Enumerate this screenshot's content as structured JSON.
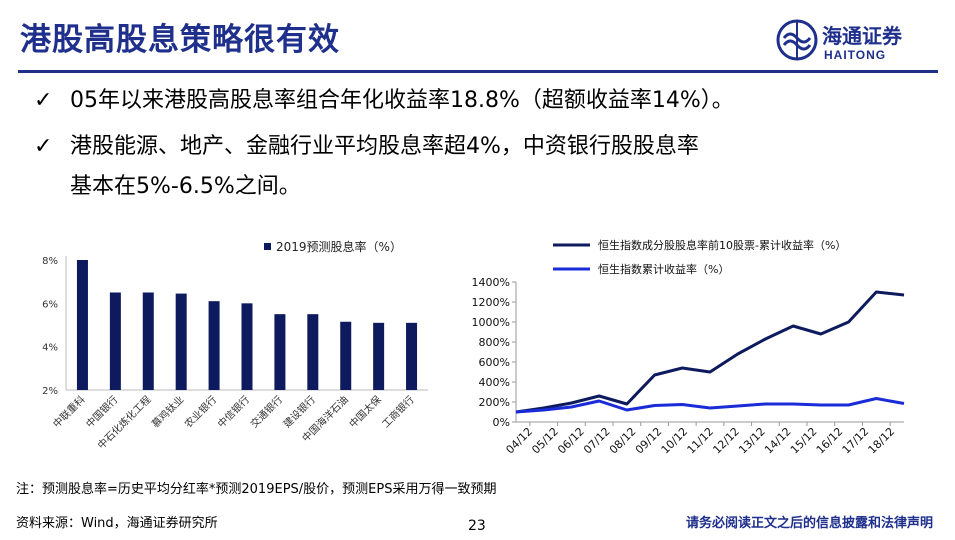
{
  "slide": {
    "title": "港股高股息策略很有效",
    "logo": {
      "cn": "海通证券",
      "en": "HAITONG"
    },
    "bullets": [
      "05年以来港股高股息率组合年化收益率18.8%（超额收益率14%）。",
      "港股能源、地产、金融行业平均股息率超4%，中资银行股股息率",
      "基本在5%-6.5%之间。"
    ],
    "note": "注：预测股息率=历史平均分红率*预测2019EPS/股价，预测EPS采用万得一致预期",
    "source": "资料来源：Wind，海通证券研究所",
    "page_number": "23",
    "disclaimer": "请务必阅读正文之后的信息披露和法律声明",
    "colors": {
      "brand": "#1f2f8c",
      "bar": "#0d1a5e",
      "line1": "#0d1a5e",
      "line2": "#1a2bd8"
    }
  },
  "chart_data": [
    {
      "type": "bar",
      "legend": "2019预测股息率（%）",
      "categories": [
        "中联重科",
        "中国银行",
        "中石化炼化工程",
        "慕鸡钛业",
        "农业银行",
        "中信银行",
        "交通银行",
        "建设银行",
        "中国海洋石油",
        "中国太保",
        "工商银行"
      ],
      "values": [
        8.0,
        6.5,
        6.5,
        6.45,
        6.1,
        6.0,
        5.5,
        5.5,
        5.15,
        5.1,
        5.1
      ],
      "ylim": [
        2,
        8
      ],
      "yticks": [
        "2%",
        "4%",
        "6%",
        "8%"
      ],
      "legend_position": "top"
    },
    {
      "type": "line",
      "x": [
        "04/12",
        "05/12",
        "06/12",
        "07/12",
        "08/12",
        "09/12",
        "10/12",
        "11/12",
        "12/12",
        "13/12",
        "14/12",
        "15/12",
        "16/12",
        "17/12",
        "18/12"
      ],
      "series": [
        {
          "name": "恒生指数成分股股息率前10股票-累计收益率（%）",
          "values": [
            100,
            140,
            190,
            260,
            180,
            470,
            540,
            500,
            680,
            830,
            960,
            880,
            1000,
            1300,
            1270
          ]
        },
        {
          "name": "恒生指数累计收益率（%）",
          "values": [
            100,
            120,
            150,
            210,
            120,
            165,
            175,
            140,
            160,
            180,
            180,
            170,
            170,
            235,
            185
          ]
        }
      ],
      "yticks": [
        "0%",
        "200%",
        "400%",
        "600%",
        "800%",
        "1000%",
        "1200%",
        "1400%"
      ],
      "ylim": [
        0,
        1400
      ],
      "legend_position": "top"
    }
  ]
}
